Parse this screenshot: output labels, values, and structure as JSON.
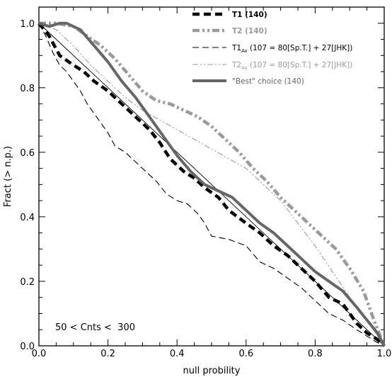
{
  "chart_data": {
    "type": "line",
    "title": "",
    "xlabel": "null probility",
    "ylabel": "Fract (> n.p.)",
    "xlim": [
      0,
      1
    ],
    "ylim": [
      0,
      1.05
    ],
    "x_ticks": [
      {
        "v": 0.0,
        "label": "0.0"
      },
      {
        "v": 0.2,
        "label": "0.2"
      },
      {
        "v": 0.4,
        "label": "0.4"
      },
      {
        "v": 0.6,
        "label": "0.6"
      },
      {
        "v": 0.8,
        "label": "0.8"
      },
      {
        "v": 1.0,
        "label": "1.0"
      }
    ],
    "y_ticks": [
      {
        "v": 0.0,
        "label": "0.0"
      },
      {
        "v": 0.2,
        "label": "0.2"
      },
      {
        "v": 0.4,
        "label": "0.4"
      },
      {
        "v": 0.6,
        "label": "0.6"
      },
      {
        "v": 0.8,
        "label": "0.8"
      },
      {
        "v": 1.0,
        "label": "1.0"
      }
    ],
    "annotation": "50 < Cnts <  300",
    "legend_position": "top-right",
    "reference_line": {
      "x": [
        0,
        1
      ],
      "y": [
        1,
        0
      ]
    },
    "series": [
      {
        "name": "T1 (140)",
        "color": "#000000",
        "width": 4.5,
        "dash": "10,6",
        "bold": true,
        "x": [
          0.0,
          0.03,
          0.06,
          0.1,
          0.13,
          0.16,
          0.2,
          0.24,
          0.28,
          0.32,
          0.35,
          0.38,
          0.42,
          0.45,
          0.48,
          0.52,
          0.55,
          0.6,
          0.64,
          0.68,
          0.72,
          0.76,
          0.8,
          0.84,
          0.88,
          0.92,
          0.95,
          0.98,
          1.0
        ],
        "y": [
          1.0,
          0.96,
          0.9,
          0.87,
          0.85,
          0.82,
          0.79,
          0.75,
          0.71,
          0.67,
          0.63,
          0.58,
          0.54,
          0.52,
          0.49,
          0.46,
          0.42,
          0.38,
          0.35,
          0.31,
          0.28,
          0.24,
          0.2,
          0.15,
          0.13,
          0.07,
          0.04,
          0.02,
          0.0
        ]
      },
      {
        "name": "T2 (140)",
        "color": "#9a9a9a",
        "width": 4.5,
        "dash": "10,4,3,4,3,4",
        "bold": true,
        "x": [
          0.0,
          0.05,
          0.1,
          0.14,
          0.18,
          0.22,
          0.26,
          0.3,
          0.34,
          0.38,
          0.42,
          0.46,
          0.5,
          0.54,
          0.58,
          0.62,
          0.66,
          0.7,
          0.74,
          0.78,
          0.82,
          0.86,
          0.9,
          0.94,
          0.97,
          1.0
        ],
        "y": [
          1.0,
          1.0,
          0.99,
          0.96,
          0.93,
          0.89,
          0.84,
          0.79,
          0.76,
          0.75,
          0.73,
          0.71,
          0.68,
          0.64,
          0.6,
          0.55,
          0.51,
          0.46,
          0.42,
          0.38,
          0.34,
          0.3,
          0.24,
          0.17,
          0.08,
          0.0
        ]
      },
      {
        "name": "T1",
        "name_sub": "Av",
        "name_rest": " (107 = 80[Sp.T.] + 27[JHK])",
        "color": "#000000",
        "width": 1.1,
        "dash": "9,5",
        "bold": false,
        "x": [
          0.0,
          0.02,
          0.04,
          0.06,
          0.08,
          0.1,
          0.12,
          0.14,
          0.16,
          0.18,
          0.2,
          0.22,
          0.25,
          0.28,
          0.31,
          0.34,
          0.37,
          0.4,
          0.43,
          0.46,
          0.48,
          0.5,
          0.55,
          0.6,
          0.64,
          0.68,
          0.72,
          0.76,
          0.8,
          0.84,
          0.88,
          0.92,
          0.95,
          0.98,
          1.0
        ],
        "y": [
          1.0,
          0.96,
          0.91,
          0.87,
          0.85,
          0.82,
          0.79,
          0.75,
          0.72,
          0.69,
          0.66,
          0.62,
          0.6,
          0.57,
          0.54,
          0.51,
          0.47,
          0.45,
          0.44,
          0.41,
          0.38,
          0.34,
          0.33,
          0.31,
          0.26,
          0.24,
          0.21,
          0.18,
          0.14,
          0.1,
          0.08,
          0.05,
          0.03,
          0.01,
          0.0
        ]
      },
      {
        "name": "T2",
        "name_sub": "Av",
        "name_rest": " (107 = 80[Sp.T.] + 27[JHK])",
        "color": "#9a9a9a",
        "width": 1.1,
        "dash": "8,3,2,3,2,3",
        "bold": false,
        "x": [
          0.0,
          0.05,
          0.1,
          0.15,
          0.2,
          0.25,
          0.3,
          0.35,
          0.4,
          0.45,
          0.5,
          0.55,
          0.6,
          0.65,
          0.7,
          0.75,
          0.8,
          0.85,
          0.9,
          0.95,
          1.0
        ],
        "y": [
          1.0,
          0.98,
          0.93,
          0.87,
          0.82,
          0.77,
          0.73,
          0.7,
          0.67,
          0.64,
          0.61,
          0.58,
          0.55,
          0.5,
          0.45,
          0.38,
          0.31,
          0.23,
          0.15,
          0.08,
          0.0
        ]
      },
      {
        "name": "\"Best\" choice (140)",
        "color": "#666666",
        "width": 4,
        "dash": "",
        "bold": false,
        "x": [
          0.0,
          0.03,
          0.06,
          0.08,
          0.12,
          0.16,
          0.2,
          0.24,
          0.28,
          0.32,
          0.36,
          0.4,
          0.44,
          0.48,
          0.52,
          0.56,
          0.6,
          0.64,
          0.68,
          0.72,
          0.76,
          0.8,
          0.84,
          0.88,
          0.92,
          0.95,
          0.98,
          1.0
        ],
        "y": [
          1.0,
          0.99,
          1.0,
          1.0,
          0.98,
          0.93,
          0.88,
          0.82,
          0.77,
          0.71,
          0.65,
          0.59,
          0.54,
          0.5,
          0.48,
          0.46,
          0.42,
          0.38,
          0.35,
          0.31,
          0.27,
          0.23,
          0.2,
          0.17,
          0.12,
          0.08,
          0.04,
          0.0
        ]
      }
    ]
  }
}
